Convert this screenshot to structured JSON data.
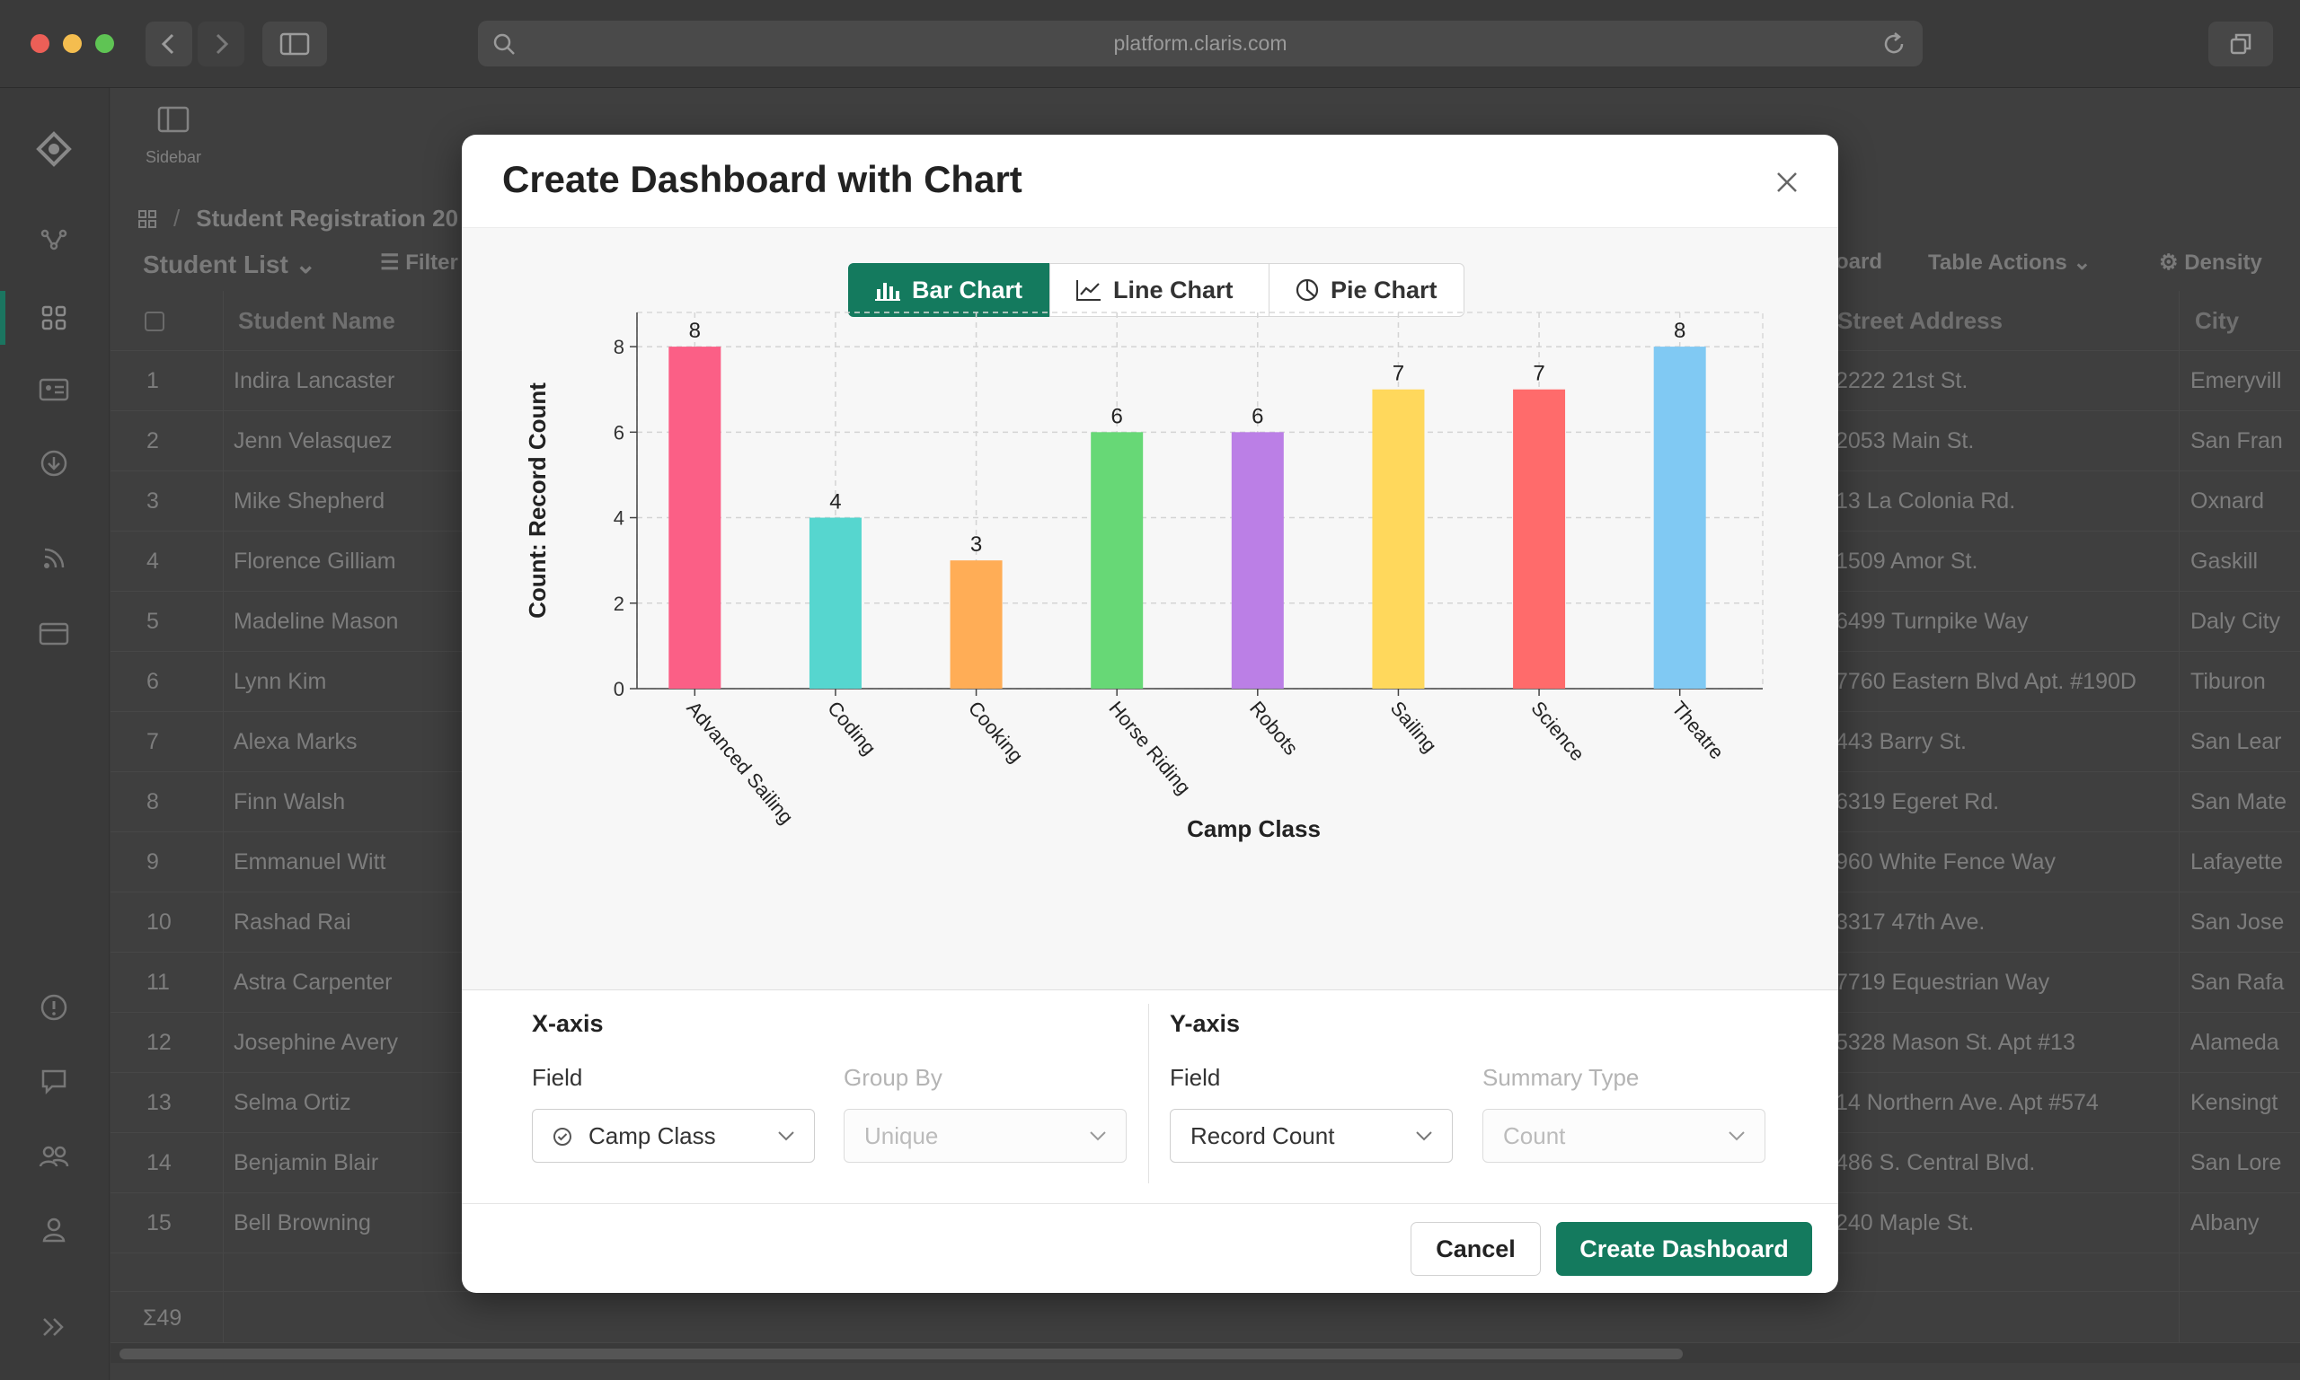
{
  "browser": {
    "url": "platform.claris.com"
  },
  "app": {
    "sidebar_label": "Sidebar",
    "breadcrumb": "Student Registration 20",
    "view_name": "Student List",
    "filter_label": "Filter",
    "board_label": "oard",
    "table_actions_label": "Table Actions",
    "density_label": "Density",
    "columns": {
      "name": "Student Name",
      "street": "Street Address",
      "city": "City"
    },
    "rows": [
      {
        "n": "1",
        "name": "Indira Lancaster",
        "street": "2222 21st St.",
        "city": "Emeryvill"
      },
      {
        "n": "2",
        "name": "Jenn Velasquez",
        "street": "2053 Main St.",
        "city": "San Fran"
      },
      {
        "n": "3",
        "name": "Mike Shepherd",
        "street": "13 La Colonia Rd.",
        "city": "Oxnard"
      },
      {
        "n": "4",
        "name": "Florence Gilliam",
        "street": "1509 Amor St.",
        "city": "Gaskill"
      },
      {
        "n": "5",
        "name": "Madeline Mason",
        "street": "6499 Turnpike Way",
        "city": "Daly City"
      },
      {
        "n": "6",
        "name": "Lynn Kim",
        "street": "7760 Eastern Blvd Apt. #190D",
        "city": "Tiburon"
      },
      {
        "n": "7",
        "name": "Alexa Marks",
        "street": "443 Barry St.",
        "city": "San Lear"
      },
      {
        "n": "8",
        "name": "Finn Walsh",
        "street": "6319 Egeret Rd.",
        "city": "San Mate"
      },
      {
        "n": "9",
        "name": "Emmanuel Witt",
        "street": "960 White Fence Way",
        "city": "Lafayette"
      },
      {
        "n": "10",
        "name": "Rashad Rai",
        "street": "3317 47th Ave.",
        "city": "San Jose"
      },
      {
        "n": "11",
        "name": "Astra Carpenter",
        "street": "7719 Equestrian Way",
        "city": "San Rafa"
      },
      {
        "n": "12",
        "name": "Josephine Avery",
        "street": "5328 Mason St. Apt #13",
        "city": "Alameda"
      },
      {
        "n": "13",
        "name": "Selma Ortiz",
        "street": "14 Northern Ave. Apt #574",
        "city": "Kensingt"
      },
      {
        "n": "14",
        "name": "Benjamin Blair",
        "street": "486 S. Central Blvd.",
        "city": "San Lore"
      },
      {
        "n": "15",
        "name": "Bell Browning",
        "street": "240 Maple St.",
        "city": "Albany"
      }
    ],
    "footer_count": "Σ49"
  },
  "modal": {
    "title": "Create Dashboard with Chart",
    "tabs": [
      {
        "label": "Bar Chart",
        "icon": "bar-chart-icon",
        "active": true
      },
      {
        "label": "Line Chart",
        "icon": "line-chart-icon",
        "active": false
      },
      {
        "label": "Pie Chart",
        "icon": "pie-chart-icon",
        "active": false
      }
    ],
    "x_axis": {
      "title": "X-axis",
      "field_label": "Field",
      "field_value": "Camp Class",
      "group_label": "Group By",
      "group_value": "Unique"
    },
    "y_axis": {
      "title": "Y-axis",
      "field_label": "Field",
      "field_value": "Record Count",
      "summary_label": "Summary Type",
      "summary_value": "Count"
    },
    "cancel_label": "Cancel",
    "create_label": "Create Dashboard",
    "accent": "#147a5e"
  },
  "chart_data": {
    "type": "bar",
    "categories": [
      "Advanced Sailing",
      "Coding",
      "Cooking",
      "Horse Riding",
      "Robots",
      "Sailing",
      "Science",
      "Theatre"
    ],
    "values": [
      8,
      4,
      3,
      6,
      6,
      7,
      7,
      8
    ],
    "colors": [
      "#fb5f86",
      "#56d6cf",
      "#ffad56",
      "#67d876",
      "#bb7fe6",
      "#ffd85c",
      "#ff6b6b",
      "#80c9f3"
    ],
    "xlabel": "Camp Class",
    "ylabel": "Count: Record Count",
    "ylim": [
      0,
      8.8
    ],
    "yticks": [
      0,
      2,
      4,
      6,
      8
    ],
    "grid": true
  }
}
